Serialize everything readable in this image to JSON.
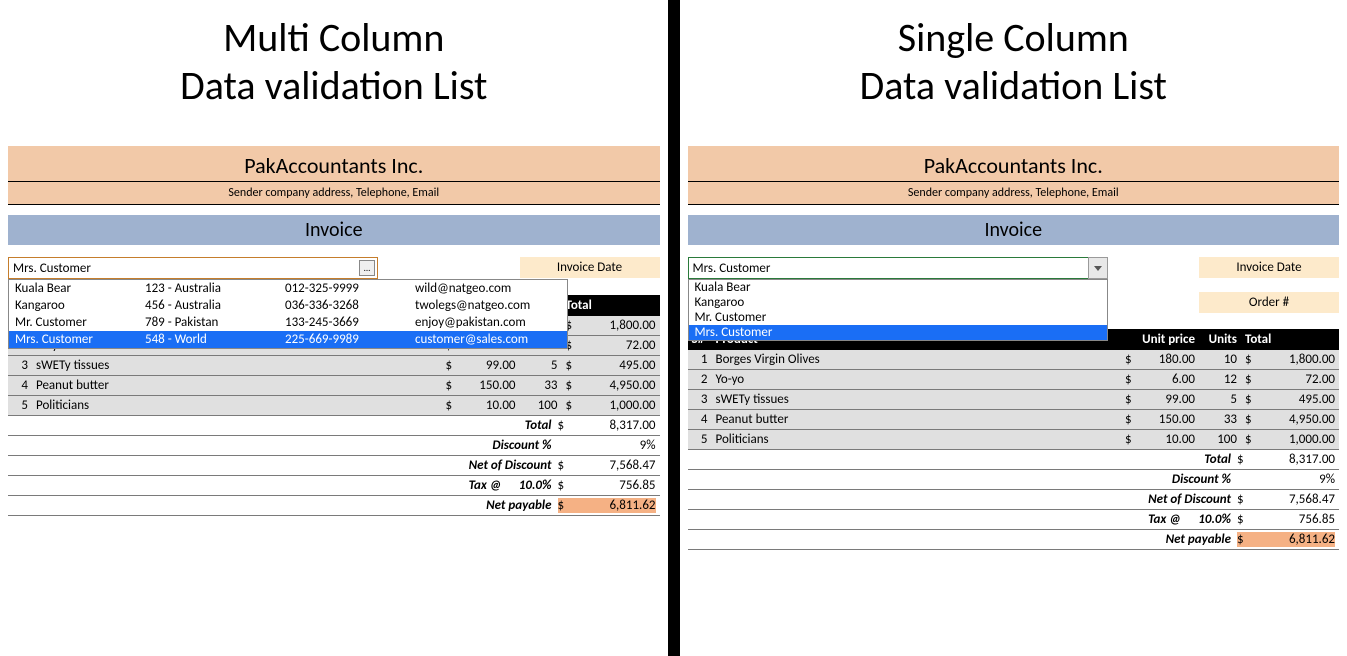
{
  "left": {
    "title_line1": "Multi Column",
    "title_line2": "Data validation List",
    "company": "PakAccountants Inc.",
    "company_sub": "Sender company address, Telephone, Email",
    "invoice_label": "Invoice",
    "dropdown_value": "Mrs. Customer",
    "dropdown_button": "...",
    "invoice_date_label": "Invoice Date",
    "list": [
      {
        "name": "Kuala Bear",
        "addr": "123 - Australia",
        "phone": "012-325-9999",
        "email": "wild@natgeo.com",
        "selected": false
      },
      {
        "name": "Kangaroo",
        "addr": "456 - Australia",
        "phone": "036-336-3268",
        "email": "twolegs@natgeo.com",
        "selected": false
      },
      {
        "name": "Mr. Customer",
        "addr": "789 - Pakistan",
        "phone": "133-245-3669",
        "email": "enjoy@pakistan.com",
        "selected": false
      },
      {
        "name": "Mrs. Customer",
        "addr": "548 - World",
        "phone": "225-669-9989",
        "email": "customer@sales.com",
        "selected": true
      }
    ]
  },
  "right": {
    "title_line1": "Single Column",
    "title_line2": "Data validation List",
    "company": "PakAccountants Inc.",
    "company_sub": "Sender company address, Telephone, Email",
    "invoice_label": "Invoice",
    "dropdown_value": "Mrs. Customer",
    "invoice_date_label": "Invoice Date",
    "order_no_label": "Order #",
    "list": [
      {
        "name": "Kuala Bear",
        "selected": false
      },
      {
        "name": "Kangaroo",
        "selected": false
      },
      {
        "name": "Mr. Customer",
        "selected": false
      },
      {
        "name": "Mrs. Customer",
        "selected": true
      }
    ]
  },
  "table": {
    "headers": {
      "sn": "S#",
      "product": "Product",
      "unit_price": "Unit price",
      "units": "Units",
      "total": "Total"
    },
    "currency": "$",
    "rows": [
      {
        "sn": "1",
        "product": "Borges Virgin Olives",
        "price": "180.00",
        "units": "10",
        "total": "1,800.00"
      },
      {
        "sn": "2",
        "product": "Yo-yo",
        "price": "6.00",
        "units": "12",
        "total": "72.00"
      },
      {
        "sn": "3",
        "product": "sWETy tissues",
        "price": "99.00",
        "units": "5",
        "total": "495.00"
      },
      {
        "sn": "4",
        "product": "Peanut butter",
        "price": "150.00",
        "units": "33",
        "total": "4,950.00"
      },
      {
        "sn": "5",
        "product": "Politicians",
        "price": "10.00",
        "units": "100",
        "total": "1,000.00"
      }
    ],
    "summary": {
      "total_label": "Total",
      "total_val": "8,317.00",
      "discount_label": "Discount %",
      "discount_val": "9%",
      "net_discount_label": "Net of Discount",
      "net_discount_val": "7,568.47",
      "tax_label": "Tax @",
      "tax_rate": "10.0%",
      "tax_val": "756.85",
      "net_payable_label": "Net payable",
      "net_payable_val": "6,811.62"
    }
  },
  "colors": {
    "peach_band": "#f2c9a8",
    "blue_band": "#9fb2cf",
    "cream_label": "#fdeacb",
    "row_gray": "#e0e0e0",
    "selected_blue": "#1a6ef5",
    "net_payable_bg": "#f5b184",
    "multi_border": "#c57d2c",
    "single_border": "#2a7a3a"
  }
}
